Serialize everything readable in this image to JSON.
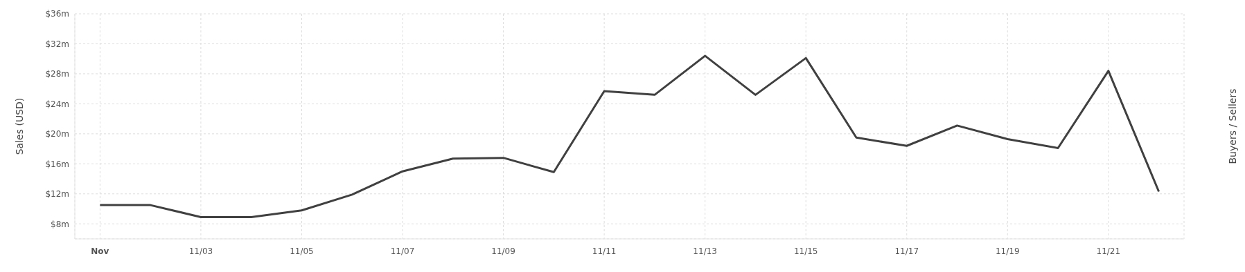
{
  "chart_data": {
    "type": "line",
    "ylabel": "Sales (USD)",
    "y2label": "Buyers / Sellers",
    "x": [
      "--11-01",
      "--11-02",
      "--11-03",
      "--11-04",
      "--11-05",
      "--11-06",
      "--11-07",
      "--11-08",
      "--11-09",
      "--11-10",
      "--11-11",
      "--11-12",
      "--11-13",
      "--11-14",
      "--11-15",
      "--11-16",
      "--11-17",
      "--11-18",
      "--11-19",
      "--11-20",
      "--11-21",
      "--11-22"
    ],
    "series": [
      {
        "color": "#404040",
        "values": [
          10.5,
          10.5,
          8.9,
          8.9,
          9.8,
          11.9,
          15.0,
          16.7,
          16.8,
          14.9,
          25.7,
          25.2,
          30.4,
          25.2,
          30.1,
          19.5,
          18.4,
          21.1,
          19.3,
          18.1,
          28.4,
          12.3
        ]
      }
    ],
    "xlim": [
      "--10-31T12:00",
      "--11-22T12:00"
    ],
    "xticks": [
      {
        "value": "--11-01",
        "label": "Nov"
      },
      {
        "value": "--11-03",
        "label": "11/03"
      },
      {
        "value": "--11-05",
        "label": "11/05"
      },
      {
        "value": "--11-07",
        "label": "11/07"
      },
      {
        "value": "--11-09",
        "label": "11/09"
      },
      {
        "value": "--11-11",
        "label": "11/11"
      },
      {
        "value": "--11-13",
        "label": "11/13"
      },
      {
        "value": "--11-15",
        "label": "11/15"
      },
      {
        "value": "--11-17",
        "label": "11/17"
      },
      {
        "value": "--11-19",
        "label": "11/19"
      },
      {
        "value": "--11-21",
        "label": "11/21"
      }
    ],
    "ylim": [
      6,
      36
    ],
    "yticks": [
      {
        "value": 8,
        "label": "$8m"
      },
      {
        "value": 12,
        "label": "$12m"
      },
      {
        "value": 16,
        "label": "$16m"
      },
      {
        "value": 20,
        "label": "$20m"
      },
      {
        "value": 24,
        "label": "$24m"
      },
      {
        "value": 28,
        "label": "$28m"
      },
      {
        "value": 32,
        "label": "$32m"
      },
      {
        "value": 36,
        "label": "$36m"
      }
    ],
    "grid": true,
    "marker": "none",
    "line_style": "solid"
  }
}
